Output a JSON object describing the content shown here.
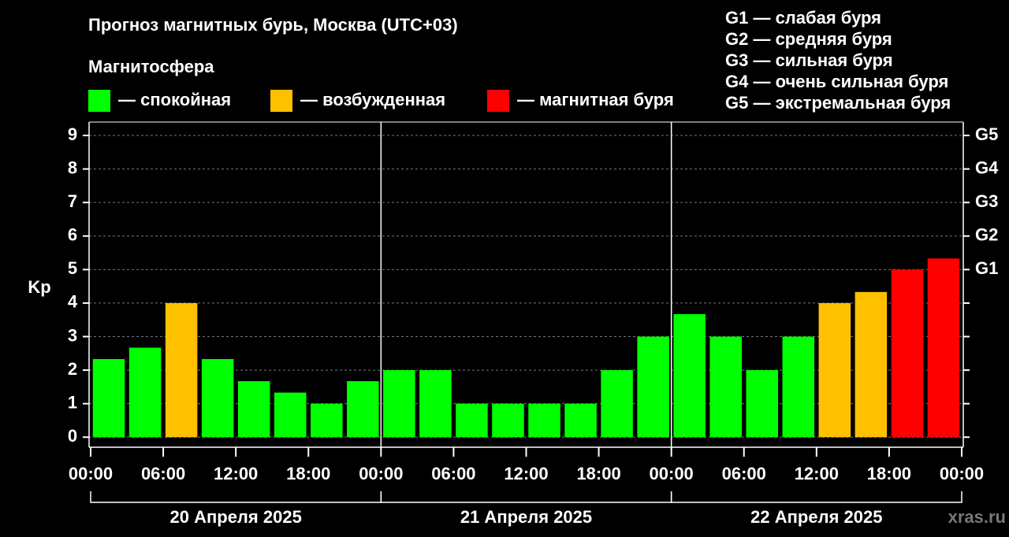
{
  "chart_data": {
    "type": "bar",
    "title": "Прогноз магнитных бурь, Москва (UTC+03)",
    "legend_title": "Магнитосфера",
    "legend": [
      {
        "color": "#00ff00",
        "label": "— спокойная"
      },
      {
        "color": "#ffc000",
        "label": "— возбужденная"
      },
      {
        "color": "#ff0000",
        "label": "— магнитная буря"
      }
    ],
    "storm_levels": [
      "G1 — слабая буря",
      "G2 — средняя буря",
      "G3 — сильная буря",
      "G4 — очень сильная буря",
      "G5 — экстремальная буря"
    ],
    "ylabel": "Kp",
    "x": [
      1.5,
      4.5,
      7.5,
      10.5,
      13.5,
      16.5,
      19.5,
      22.5,
      25.5,
      28.5,
      31.5,
      34.5,
      37.5,
      40.5,
      43.5,
      46.5,
      49.5,
      52.5,
      55.5,
      58.5,
      61.5,
      64.5,
      67.5,
      70.5
    ],
    "values": [
      2.33,
      2.67,
      4,
      2.33,
      1.67,
      1.33,
      1,
      1.67,
      2,
      2,
      1,
      1,
      1,
      1,
      2,
      3,
      3.67,
      3,
      2,
      3,
      4,
      4.33,
      5,
      5.33
    ],
    "colors": [
      "#00ff00",
      "#00ff00",
      "#ffc000",
      "#00ff00",
      "#00ff00",
      "#00ff00",
      "#00ff00",
      "#00ff00",
      "#00ff00",
      "#00ff00",
      "#00ff00",
      "#00ff00",
      "#00ff00",
      "#00ff00",
      "#00ff00",
      "#00ff00",
      "#00ff00",
      "#00ff00",
      "#00ff00",
      "#00ff00",
      "#ffc000",
      "#ffc000",
      "#ff0000",
      "#ff0000"
    ],
    "xlim": [
      0,
      72
    ],
    "xticks": [
      {
        "value": 0,
        "label": "00:00"
      },
      {
        "value": 6,
        "label": "06:00"
      },
      {
        "value": 12,
        "label": "12:00"
      },
      {
        "value": 18,
        "label": "18:00"
      },
      {
        "value": 24,
        "label": "00:00"
      },
      {
        "value": 30,
        "label": "06:00"
      },
      {
        "value": 36,
        "label": "12:00"
      },
      {
        "value": 42,
        "label": "18:00"
      },
      {
        "value": 48,
        "label": "00:00"
      },
      {
        "value": 54,
        "label": "06:00"
      },
      {
        "value": 60,
        "label": "12:00"
      },
      {
        "value": 66,
        "label": "18:00"
      },
      {
        "value": 72,
        "label": "00:00"
      }
    ],
    "days": [
      "20 Апреля 2025",
      "21 Апреля 2025",
      "22 Апреля 2025"
    ],
    "ylim": [
      -0.3,
      9.4
    ],
    "yticks": [
      0,
      1,
      2,
      3,
      4,
      5,
      6,
      7,
      8,
      9
    ],
    "y2ticks": [
      {
        "value": 5,
        "label": "G1"
      },
      {
        "value": 6,
        "label": "G2"
      },
      {
        "value": 7,
        "label": "G3"
      },
      {
        "value": 8,
        "label": "G4"
      },
      {
        "value": 9,
        "label": "G5"
      }
    ],
    "grid": true,
    "watermark": "xras.ru"
  }
}
